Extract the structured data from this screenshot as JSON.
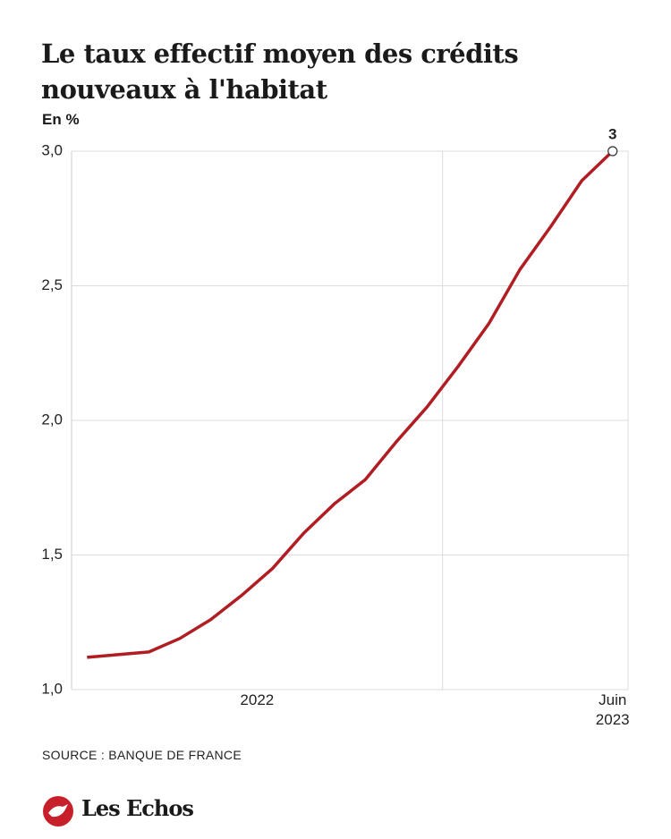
{
  "chart_data": {
    "type": "line",
    "title": "Le taux effectif moyen des crédits nouveaux à l'habitat",
    "y_label": "En %",
    "source": "SOURCE : BANQUE DE FRANCE",
    "brand": "Les Echos",
    "x": [
      0,
      1,
      2,
      3,
      4,
      5,
      6,
      7,
      8,
      9,
      10,
      11,
      12,
      13,
      14,
      15,
      16,
      17
    ],
    "series": [
      {
        "name": "Taux effectif moyen",
        "color": "#b01e23",
        "values": [
          1.12,
          1.13,
          1.14,
          1.19,
          1.26,
          1.35,
          1.45,
          1.58,
          1.69,
          1.78,
          1.92,
          2.05,
          2.2,
          2.36,
          2.56,
          2.72,
          2.89,
          3.0
        ],
        "value_labels": [
          null,
          null,
          null,
          null,
          null,
          null,
          null,
          null,
          null,
          null,
          null,
          null,
          null,
          null,
          null,
          null,
          null,
          "3"
        ]
      }
    ],
    "xlim": [
      -0.5,
      17.5
    ],
    "xticks": [
      {
        "value": 5.5,
        "label": "2022"
      },
      {
        "value": 17,
        "label": "Juin\n2023"
      }
    ],
    "xgrid": [
      11.5
    ],
    "ylim": [
      1.0,
      3.0
    ],
    "yticks": [
      {
        "value": 1.0,
        "label": "1,0"
      },
      {
        "value": 1.5,
        "label": "1,5"
      },
      {
        "value": 2.0,
        "label": "2,0"
      },
      {
        "value": 2.5,
        "label": "2,5"
      },
      {
        "value": 3.0,
        "label": "3,0"
      }
    ],
    "grid": true
  }
}
